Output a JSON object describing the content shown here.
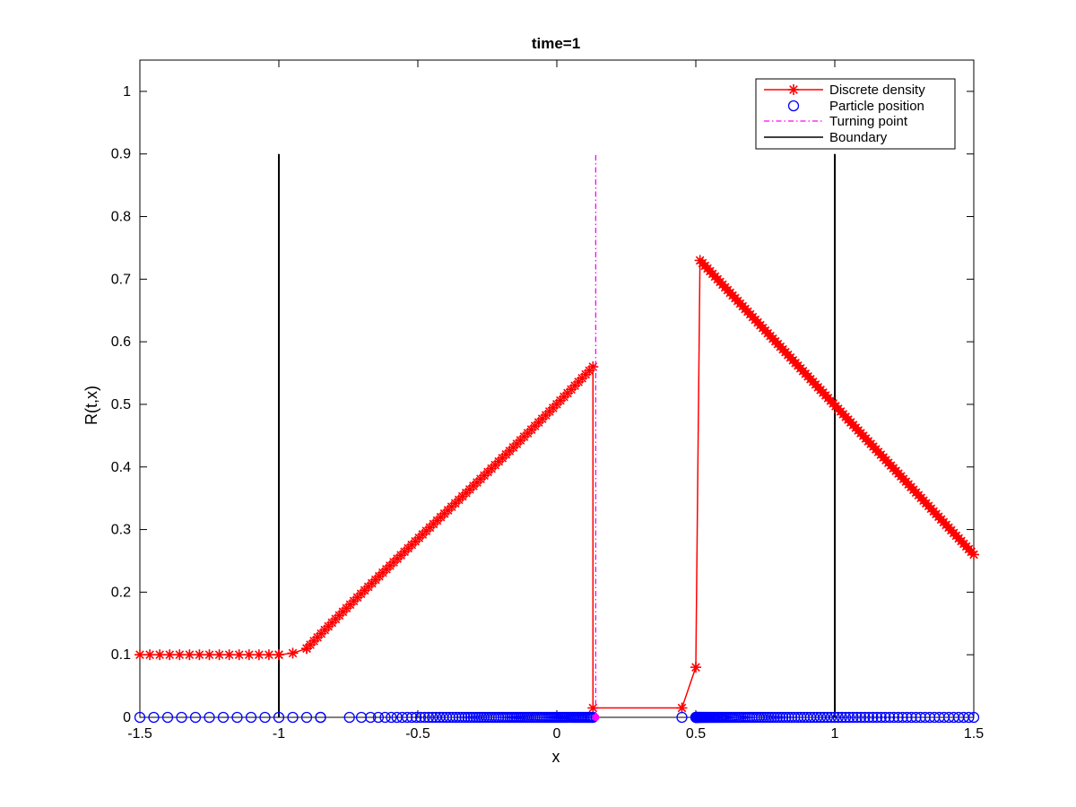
{
  "chart_data": {
    "type": "line",
    "title": "time=1",
    "xlabel": "x",
    "ylabel": "R(t,x)",
    "xlim": [
      -1.5,
      1.5
    ],
    "ylim": [
      0,
      1.05
    ],
    "xticks": [
      -1.5,
      -1,
      -0.5,
      0,
      0.5,
      1,
      1.5
    ],
    "xtick_labels": [
      "-1.5",
      "-1",
      "-0.5",
      "0",
      "0.5",
      "1",
      "1.5"
    ],
    "yticks": [
      0,
      0.1,
      0.2,
      0.3,
      0.4,
      0.5,
      0.6,
      0.7,
      0.8,
      0.9,
      1
    ],
    "ytick_labels": [
      "0",
      "0.1",
      "0.2",
      "0.3",
      "0.4",
      "0.5",
      "0.6",
      "0.7",
      "0.8",
      "0.9",
      "1"
    ],
    "grid": false,
    "legend_position": "top-right",
    "colors": {
      "density": "#ff0000",
      "particles": "#0000ff",
      "turning": "#ff00ff",
      "boundary": "#000000"
    },
    "series": [
      {
        "name": "Discrete density",
        "marker": "asterisk",
        "linestyle": "solid",
        "segments": [
          {
            "x_start": -1.5,
            "x_end": -1.0,
            "y_start": 0.1,
            "y_end": 0.1,
            "points": 15
          },
          {
            "x_start": -1.0,
            "x_end": -0.9,
            "y_start": 0.1,
            "y_end": 0.11,
            "points": 3,
            "curve": "quadratic"
          },
          {
            "x_start": -0.9,
            "x_end": 0.13,
            "y_start": 0.11,
            "y_end": 0.56,
            "points": 80,
            "curve": "slight-concave"
          },
          {
            "x_start": 0.515,
            "x_end": 1.5,
            "y_start": 0.73,
            "y_end": 0.26,
            "points": 110
          }
        ],
        "extra_points": [
          {
            "x": 0.13,
            "y": 0.015
          },
          {
            "x": 0.45,
            "y": 0.015
          },
          {
            "x": 0.5,
            "y": 0.08
          }
        ]
      },
      {
        "name": "Particle position",
        "marker": "circle",
        "linestyle": "none",
        "y": 0,
        "segments": [
          {
            "x_start": -1.5,
            "x_end": -0.85,
            "spacing": 0.05
          },
          {
            "x_start": -0.85,
            "x_end": 0.13,
            "points": 90,
            "density": "increasing"
          },
          {
            "x_start": 0.45,
            "x_end": 0.45,
            "points": 1
          },
          {
            "x_start": 0.5,
            "x_end": 1.5,
            "points": 110,
            "density": "decreasing"
          }
        ]
      },
      {
        "name": "Turning point",
        "linestyle": "dashdot",
        "x": 0.14,
        "y_range": [
          0,
          0.9
        ]
      },
      {
        "name": "Boundary",
        "linestyle": "solid",
        "lines": [
          {
            "x": -1,
            "y_range": [
              0,
              0.9
            ]
          },
          {
            "x": 1,
            "y_range": [
              0,
              0.9
            ]
          }
        ]
      }
    ],
    "legend": [
      "Discrete density",
      "Particle position",
      "Turning point",
      "Boundary"
    ]
  }
}
